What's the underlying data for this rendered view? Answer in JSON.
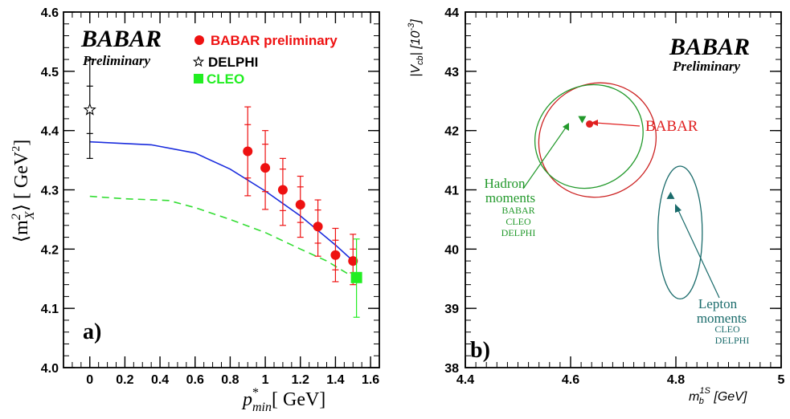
{
  "chart_data": [
    {
      "type": "scatter",
      "panel_label": "a)",
      "xlabel_main": "p",
      "xlabel_sup": "*",
      "xlabel_sub": "min",
      "xlabel_unit": "[ GeV]",
      "ylabel_main": "⟨m",
      "ylabel_sub": "X",
      "ylabel_sup": "2",
      "ylabel_unit": "⟩ [ GeV",
      "ylabel_unit_sup": "2",
      "ylabel_close": "]",
      "xlim": [
        -0.15,
        1.65
      ],
      "ylim": [
        4.0,
        4.6
      ],
      "xticks": [
        "0",
        "0.2",
        "0.4",
        "0.6",
        "0.8",
        "1",
        "1.2",
        "1.4",
        "1.6"
      ],
      "yticks": [
        "4.0",
        "4.1",
        "4.2",
        "4.3",
        "4.4",
        "4.5",
        "4.6"
      ],
      "logo": {
        "main": "BABAR",
        "sub": "Preliminary"
      },
      "legend": [
        {
          "label": "BABAR preliminary",
          "color": "#ee1111",
          "marker": "circle"
        },
        {
          "label": "DELPHI",
          "color": "#000000",
          "marker": "star"
        },
        {
          "label": "CLEO",
          "color": "#22ee22",
          "marker": "square"
        }
      ],
      "series": [
        {
          "name": "BABAR preliminary",
          "color": "#ee1111",
          "marker": "circle",
          "points": [
            {
              "x": 0.9,
              "y": 4.365,
              "err_lo": 0.075,
              "err_hi": 0.075,
              "err_inner": 0.045
            },
            {
              "x": 1.0,
              "y": 4.337,
              "err_lo": 0.07,
              "err_hi": 0.063,
              "err_inner": 0.04
            },
            {
              "x": 1.1,
              "y": 4.3,
              "err_lo": 0.06,
              "err_hi": 0.053,
              "err_inner": 0.035
            },
            {
              "x": 1.2,
              "y": 4.275,
              "err_lo": 0.055,
              "err_hi": 0.048,
              "err_inner": 0.03
            },
            {
              "x": 1.3,
              "y": 4.238,
              "err_lo": 0.05,
              "err_hi": 0.045,
              "err_inner": 0.028
            },
            {
              "x": 1.4,
              "y": 4.19,
              "err_lo": 0.045,
              "err_hi": 0.045,
              "err_inner": 0.025
            },
            {
              "x": 1.5,
              "y": 4.18,
              "err_lo": 0.04,
              "err_hi": 0.045,
              "err_inner": 0.02
            }
          ]
        },
        {
          "name": "DELPHI",
          "color": "#000000",
          "marker": "star",
          "points": [
            {
              "x": 0.0,
              "y": 4.435,
              "err_lo": 0.082,
              "err_hi": 0.085,
              "err_inner": 0.04
            }
          ]
        },
        {
          "name": "CLEO",
          "color": "#22ee22",
          "marker": "square",
          "points": [
            {
              "x": 1.52,
              "y": 4.152,
              "err_lo": 0.067,
              "err_hi": 0.065,
              "err_inner": 0.0
            }
          ]
        }
      ],
      "curves": [
        {
          "color": "#1a2cdd",
          "style": "solid",
          "x": [
            0.0,
            0.35,
            0.6,
            0.8,
            1.0,
            1.2,
            1.4,
            1.5
          ],
          "y": [
            4.381,
            4.376,
            4.362,
            4.335,
            4.298,
            4.256,
            4.207,
            4.18
          ]
        },
        {
          "color": "#33dd33",
          "style": "dashed",
          "x": [
            0.0,
            0.2,
            0.45,
            0.6,
            0.8,
            1.0,
            1.2,
            1.35,
            1.5
          ],
          "y": [
            4.289,
            4.285,
            4.282,
            4.27,
            4.25,
            4.228,
            4.2,
            4.18,
            4.153
          ]
        }
      ]
    },
    {
      "type": "scatter",
      "panel_label": "b)",
      "xlabel_main": "m",
      "xlabel_sub": "b",
      "xlabel_sup": "1S",
      "xlabel_unit": " [GeV]",
      "ylabel": "|V",
      "ylabel_sub": "cb",
      "ylabel_unit": "| [10",
      "ylabel_unit_sup": "-3",
      "ylabel_close": "]",
      "xlim": [
        4.4,
        5.0
      ],
      "ylim": [
        38,
        44
      ],
      "xticks": [
        "4.4",
        "4.6",
        "4.8",
        "5"
      ],
      "yticks": [
        "38",
        "39",
        "40",
        "41",
        "42",
        "43",
        "44"
      ],
      "logo": {
        "main": "BABAR",
        "sub": "Preliminary"
      },
      "points": [
        {
          "name": "BABAR",
          "x": 4.636,
          "y": 42.11,
          "color": "#e02020",
          "marker": "circle"
        },
        {
          "name": "Hadron moments",
          "x": 4.622,
          "y": 42.19,
          "color": "#22992b",
          "marker": "triangle-down"
        },
        {
          "name": "Lepton moments",
          "x": 4.79,
          "y": 40.9,
          "color": "#1a6b6b",
          "marker": "triangle-up"
        }
      ],
      "ellipses": [
        {
          "color": "#cc2222",
          "cx": 4.651,
          "cy": 41.84,
          "a_x": 0.145,
          "a_y": 0.95,
          "tilt": -1
        },
        {
          "color": "#22992b",
          "cx": 4.635,
          "cy": 41.9,
          "a_x": 0.135,
          "a_y": 0.85,
          "tilt": -1
        },
        {
          "color": "#1a6b6b",
          "cx": 4.808,
          "cy": 40.28,
          "a_x": 0.054,
          "a_y": 1.12,
          "tilt": 0
        }
      ],
      "annotations": {
        "babar": {
          "label": "BABAR",
          "color": "#e02020"
        },
        "hadron": {
          "title": [
            "Hadron",
            "moments"
          ],
          "items": [
            "BABAR",
            "CLEO",
            "DELPHI"
          ],
          "color": "#22992b"
        },
        "lepton": {
          "title": [
            "Lepton",
            "moments"
          ],
          "items": [
            "CLEO",
            "DELPHI"
          ],
          "color": "#1a6b6b"
        }
      }
    }
  ]
}
